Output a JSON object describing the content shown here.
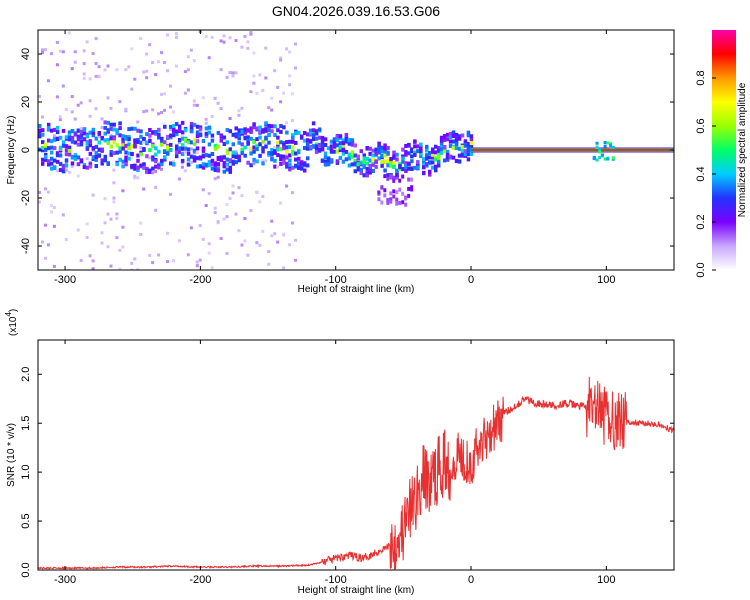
{
  "page_title": "GN04.2026.039.16.53.G06",
  "chart_data": [
    {
      "type": "heatmap",
      "xlabel": "Height of straight line (km)",
      "ylabel": "Frequency (Hz)",
      "xlim": [
        -320,
        150
      ],
      "ylim": [
        -50,
        50
      ],
      "xticks": [
        -300,
        -200,
        -100,
        0,
        100
      ],
      "yticks": [
        -40,
        -20,
        0,
        20,
        40
      ],
      "colorbar": {
        "label": "Normalized spectral amplitude",
        "range": [
          0,
          1
        ],
        "ticks": [
          "0.0",
          "0.2",
          "0.4",
          "0.6",
          "0.8"
        ],
        "tick_values": [
          0.0,
          0.2,
          0.4,
          0.6,
          0.8
        ],
        "colors": [
          "#ffffff",
          "#c8a8ff",
          "#7a00ff",
          "#2233ff",
          "#00ccff",
          "#00ff66",
          "#99ff00",
          "#ffff00",
          "#ff9900",
          "#ff0000",
          "#ff00aa"
        ]
      },
      "features": [
        {
          "description_x": [
            -320,
            -130
          ],
          "spread_hz": [
            -50,
            50
          ],
          "level": "low, scattered"
        },
        {
          "description_x": [
            -320,
            -120
          ],
          "band_hz": [
            -10,
            10
          ],
          "level": "medium"
        },
        {
          "description_x": [
            -120,
            -10
          ],
          "band_hz": [
            -12,
            10
          ],
          "level": "medium, wavy"
        },
        {
          "description_x": [
            0,
            150
          ],
          "band_hz": [
            -1,
            1
          ],
          "level": "high"
        },
        {
          "description_x": [
            90,
            105
          ],
          "band_hz": [
            -4,
            4
          ],
          "level": "medium"
        }
      ]
    },
    {
      "type": "line",
      "xlabel": "Height of straight line (km)",
      "ylabel": "SNR (10 * v/v)",
      "y_scale_label": "(x10",
      "y_scale_exp": "4",
      "xlim": [
        -320,
        150
      ],
      "ylim": [
        0,
        2.35
      ],
      "xticks": [
        -300,
        -200,
        -100,
        0,
        100
      ],
      "yticks": [
        "0.0",
        "0.5",
        "1.0",
        "1.5",
        "2.0"
      ],
      "ytick_values": [
        0.0,
        0.5,
        1.0,
        1.5,
        2.0
      ],
      "color": "#e83030",
      "series": [
        {
          "x": [
            -320,
            -300,
            -280,
            -260,
            -240,
            -220,
            -200,
            -180,
            -160,
            -140,
            -120,
            -110,
            -100,
            -90,
            -80,
            -70,
            -60,
            -50,
            -45,
            -40,
            -35,
            -30,
            -25,
            -20,
            -15,
            -10,
            -5,
            0,
            5,
            10,
            15,
            20,
            25,
            30,
            35,
            40,
            45,
            50,
            60,
            70,
            80,
            90,
            95,
            100,
            105,
            110,
            120,
            130,
            140,
            150
          ],
          "y": [
            0.02,
            0.02,
            0.02,
            0.03,
            0.03,
            0.04,
            0.03,
            0.03,
            0.04,
            0.04,
            0.05,
            0.08,
            0.12,
            0.15,
            0.12,
            0.18,
            0.25,
            0.4,
            0.6,
            0.75,
            0.95,
            0.9,
            1.0,
            1.1,
            1.05,
            1.2,
            1.15,
            1.1,
            1.25,
            1.35,
            1.45,
            1.5,
            1.6,
            1.65,
            1.7,
            1.75,
            1.72,
            1.7,
            1.68,
            1.7,
            1.68,
            1.65,
            1.6,
            1.55,
            1.55,
            1.52,
            1.5,
            1.5,
            1.48,
            1.42
          ]
        }
      ]
    }
  ]
}
